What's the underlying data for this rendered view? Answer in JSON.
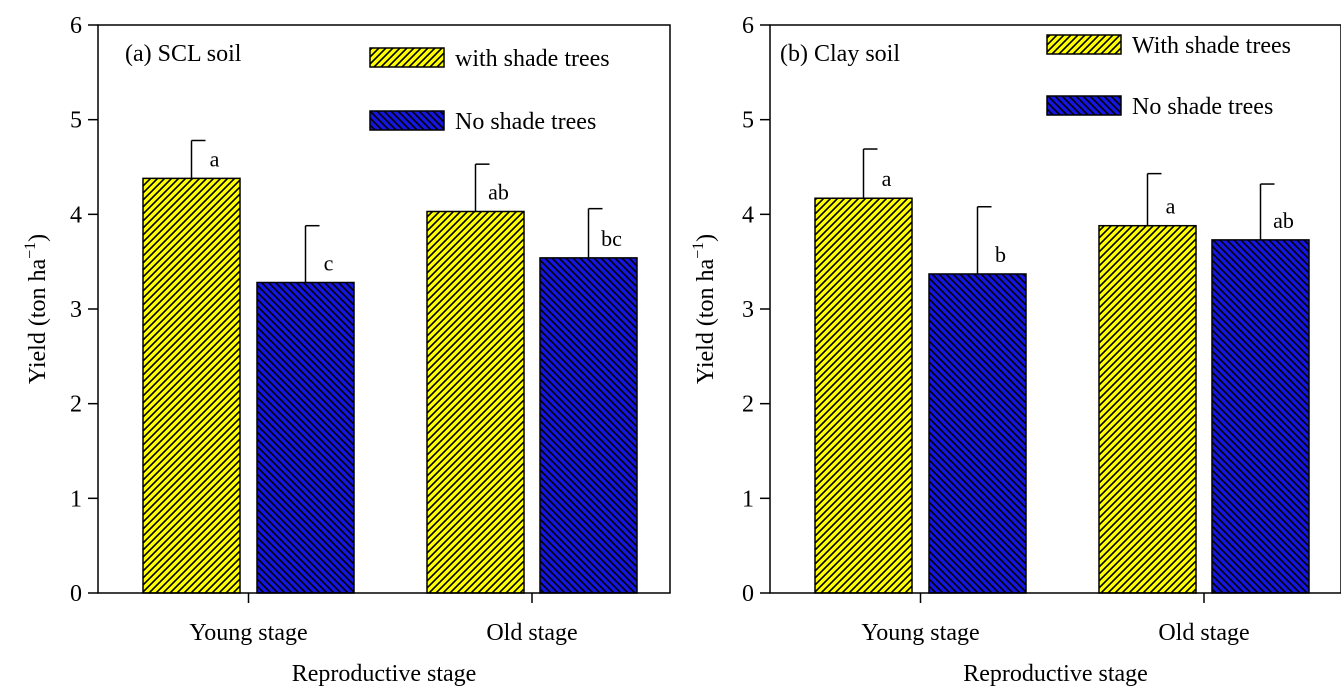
{
  "colors": {
    "with_fill": "#ffff00",
    "no_fill": "#1515e0",
    "hatch": "#000000"
  },
  "chart_data": [
    {
      "type": "bar",
      "title": "(a) SCL soil",
      "xlabel": "Reproductive stage",
      "ylabel_main": "Yield (ton ha",
      "ylabel_sup": "−1",
      "ylabel_close": ")",
      "ylim": [
        0,
        6
      ],
      "yticks": [
        0,
        1,
        2,
        3,
        4,
        5,
        6
      ],
      "categories": [
        "Young stage",
        "Old stage"
      ],
      "legend_position": "top-right",
      "series": [
        {
          "name": "with shade trees",
          "key": "with",
          "values": [
            4.38,
            4.03
          ],
          "errors": [
            0.4,
            0.5
          ],
          "labels": [
            "a",
            "ab"
          ]
        },
        {
          "name": "No shade trees",
          "key": "no",
          "values": [
            3.28,
            3.54
          ],
          "errors": [
            0.6,
            0.52
          ],
          "labels": [
            "c",
            "bc"
          ]
        }
      ]
    },
    {
      "type": "bar",
      "title": "(b) Clay soil",
      "xlabel": "Reproductive stage",
      "ylabel_main": "Yield (ton ha",
      "ylabel_sup": "−1",
      "ylabel_close": ")",
      "ylim": [
        0,
        6
      ],
      "yticks": [
        0,
        1,
        2,
        3,
        4,
        5,
        6
      ],
      "categories": [
        "Young stage",
        "Old stage"
      ],
      "legend_position": "top-right",
      "series": [
        {
          "name": "With shade trees",
          "key": "with",
          "values": [
            4.17,
            3.88
          ],
          "errors": [
            0.52,
            0.55
          ],
          "labels": [
            "a",
            "a"
          ]
        },
        {
          "name": "No shade trees",
          "key": "no",
          "values": [
            3.37,
            3.73
          ],
          "errors": [
            0.71,
            0.59
          ],
          "labels": [
            "b",
            "ab"
          ]
        }
      ]
    }
  ]
}
